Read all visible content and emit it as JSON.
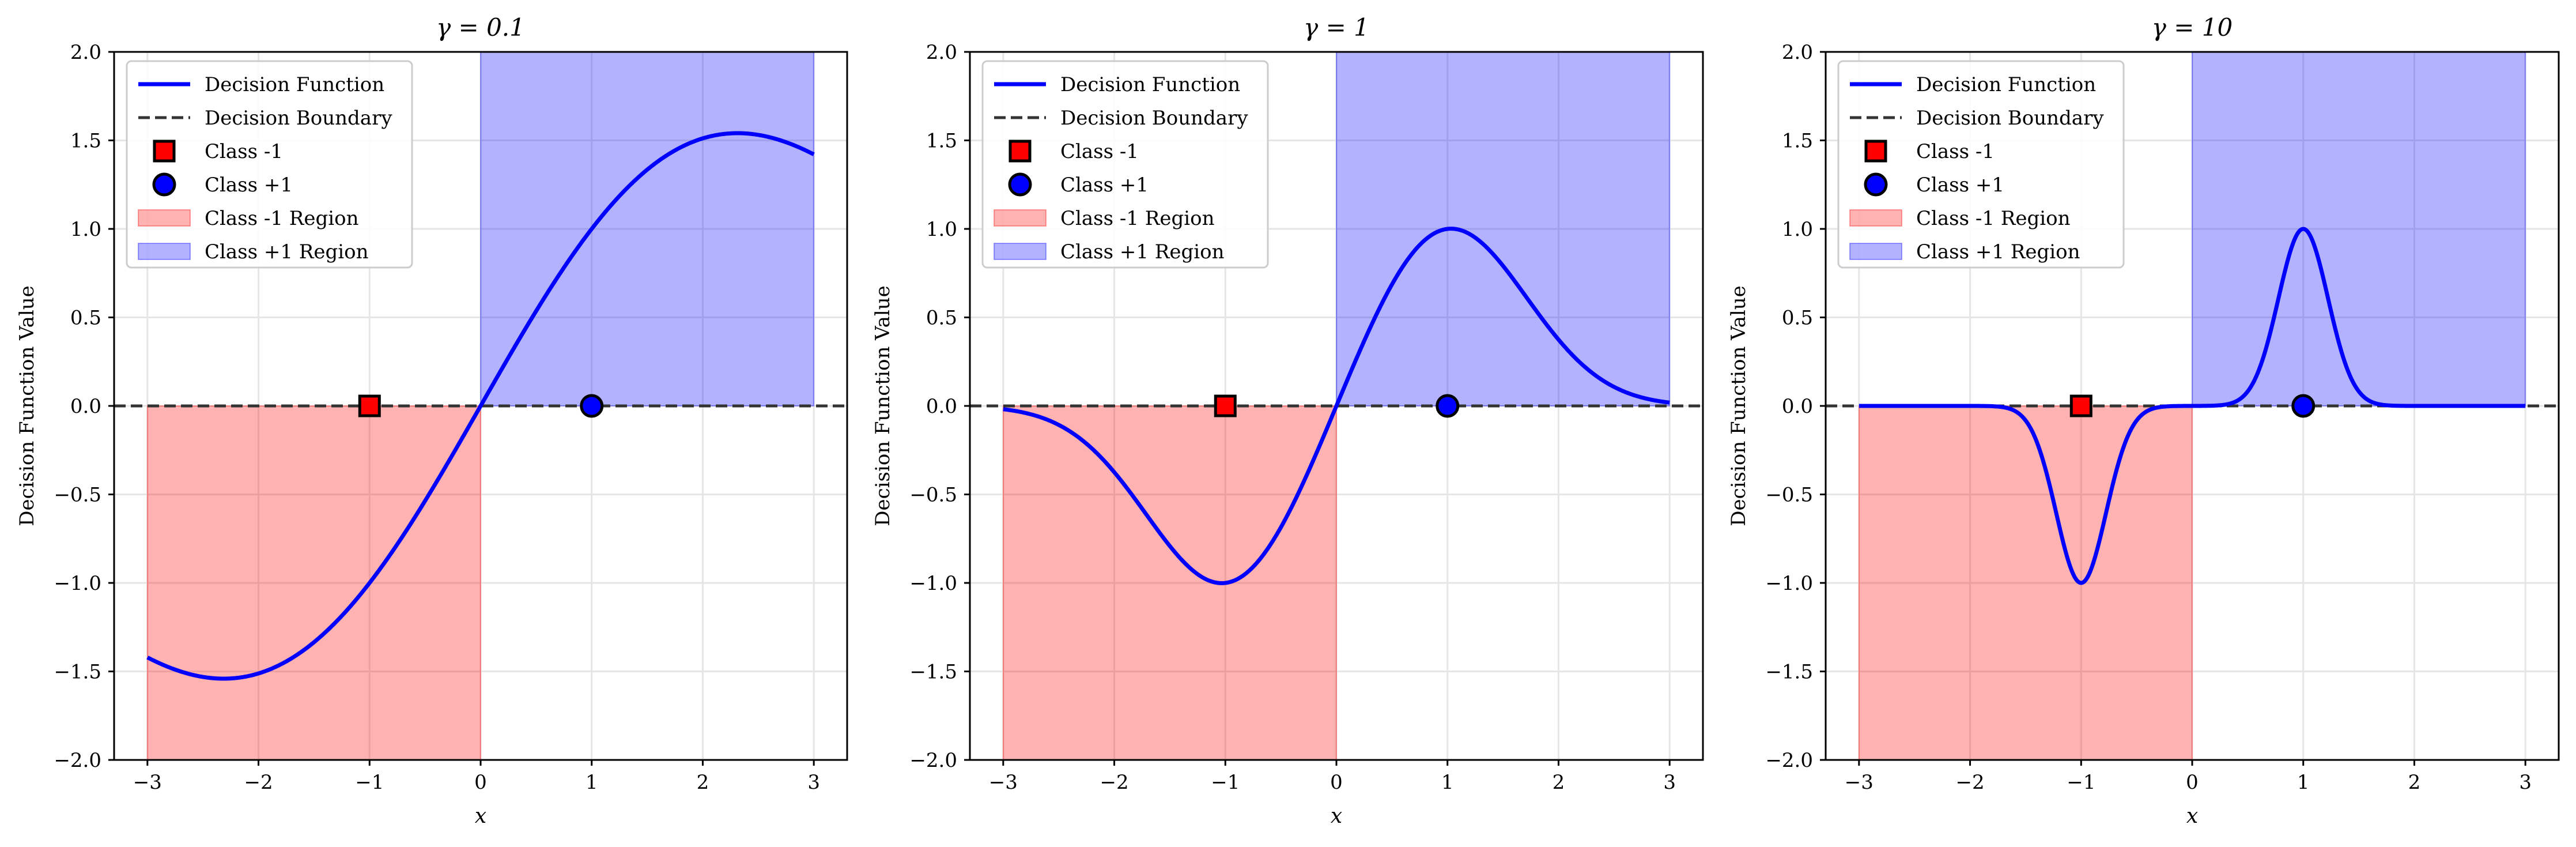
{
  "chart_data": [
    {
      "type": "line",
      "title": "γ = 0.1",
      "gamma": 0.1,
      "xlabel": "x",
      "ylabel": "Decision Function Value",
      "xlim": [
        -3.3,
        3.3
      ],
      "ylim": [
        -2.0,
        2.0
      ],
      "xticks": [
        -3,
        -2,
        -1,
        0,
        1,
        2,
        3
      ],
      "xtick_labels": [
        "−3",
        "−2",
        "−1",
        "0",
        "1",
        "2",
        "3"
      ],
      "yticks": [
        -2.0,
        -1.5,
        -1.0,
        -0.5,
        0.0,
        0.5,
        1.0,
        1.5,
        2.0
      ],
      "ytick_labels": [
        "−2.0",
        "−1.5",
        "−1.0",
        "−0.5",
        "0.0",
        "0.5",
        "1.0",
        "1.5",
        "2.0"
      ],
      "grid": true,
      "legend_location": "upper left",
      "series": [
        {
          "name": "Decision Function",
          "style": "solid",
          "color": "#0000ff",
          "x_range": [
            -3,
            3
          ],
          "formula": "f(x) = (exp(-gamma*(x-1)^2) - exp(-gamma*(x+1)^2)) / (1 - exp(-4*gamma))"
        },
        {
          "name": "Decision Boundary",
          "style": "dashed",
          "color": "#333333",
          "y": 0
        }
      ],
      "points": [
        {
          "name": "Class -1",
          "x": -1,
          "y": 0,
          "marker": "square",
          "color": "#ff0000"
        },
        {
          "name": "Class +1",
          "x": 1,
          "y": 0,
          "marker": "circle",
          "color": "#0000ff"
        }
      ],
      "regions": [
        {
          "name": "Class -1 Region",
          "x": [
            -3,
            0
          ],
          "y": [
            -2,
            0
          ],
          "color": "#ff0000",
          "alpha": 0.3
        },
        {
          "name": "Class +1 Region",
          "x": [
            0,
            3
          ],
          "y": [
            0,
            2
          ],
          "color": "#0000ff",
          "alpha": 0.3
        }
      ]
    },
    {
      "type": "line",
      "title": "γ = 1",
      "gamma": 1,
      "xlabel": "x",
      "ylabel": "Decision Function Value",
      "xlim": [
        -3.3,
        3.3
      ],
      "ylim": [
        -2.0,
        2.0
      ],
      "xticks": [
        -3,
        -2,
        -1,
        0,
        1,
        2,
        3
      ],
      "xtick_labels": [
        "−3",
        "−2",
        "−1",
        "0",
        "1",
        "2",
        "3"
      ],
      "yticks": [
        -2.0,
        -1.5,
        -1.0,
        -0.5,
        0.0,
        0.5,
        1.0,
        1.5,
        2.0
      ],
      "ytick_labels": [
        "−2.0",
        "−1.5",
        "−1.0",
        "−0.5",
        "0.0",
        "0.5",
        "1.0",
        "1.5",
        "2.0"
      ],
      "grid": true,
      "legend_location": "upper left",
      "series": [
        {
          "name": "Decision Function",
          "style": "solid",
          "color": "#0000ff",
          "x_range": [
            -3,
            3
          ],
          "formula": "f(x) = (exp(-gamma*(x-1)^2) - exp(-gamma*(x+1)^2)) / (1 - exp(-4*gamma))"
        },
        {
          "name": "Decision Boundary",
          "style": "dashed",
          "color": "#333333",
          "y": 0
        }
      ],
      "points": [
        {
          "name": "Class -1",
          "x": -1,
          "y": 0,
          "marker": "square",
          "color": "#ff0000"
        },
        {
          "name": "Class +1",
          "x": 1,
          "y": 0,
          "marker": "circle",
          "color": "#0000ff"
        }
      ],
      "regions": [
        {
          "name": "Class -1 Region",
          "x": [
            -3,
            0
          ],
          "y": [
            -2,
            0
          ],
          "color": "#ff0000",
          "alpha": 0.3
        },
        {
          "name": "Class +1 Region",
          "x": [
            0,
            3
          ],
          "y": [
            0,
            2
          ],
          "color": "#0000ff",
          "alpha": 0.3
        }
      ]
    },
    {
      "type": "line",
      "title": "γ = 10",
      "gamma": 10,
      "xlabel": "x",
      "ylabel": "Decision Function Value",
      "xlim": [
        -3.3,
        3.3
      ],
      "ylim": [
        -2.0,
        2.0
      ],
      "xticks": [
        -3,
        -2,
        -1,
        0,
        1,
        2,
        3
      ],
      "xtick_labels": [
        "−3",
        "−2",
        "−1",
        "0",
        "1",
        "2",
        "3"
      ],
      "yticks": [
        -2.0,
        -1.5,
        -1.0,
        -0.5,
        0.0,
        0.5,
        1.0,
        1.5,
        2.0
      ],
      "ytick_labels": [
        "−2.0",
        "−1.5",
        "−1.0",
        "−0.5",
        "0.0",
        "0.5",
        "1.0",
        "1.5",
        "2.0"
      ],
      "grid": true,
      "legend_location": "upper left",
      "series": [
        {
          "name": "Decision Function",
          "style": "solid",
          "color": "#0000ff",
          "x_range": [
            -3,
            3
          ],
          "formula": "f(x) = (exp(-gamma*(x-1)^2) - exp(-gamma*(x+1)^2)) / (1 - exp(-4*gamma))"
        },
        {
          "name": "Decision Boundary",
          "style": "dashed",
          "color": "#333333",
          "y": 0
        }
      ],
      "points": [
        {
          "name": "Class -1",
          "x": -1,
          "y": 0,
          "marker": "square",
          "color": "#ff0000"
        },
        {
          "name": "Class +1",
          "x": 1,
          "y": 0,
          "marker": "circle",
          "color": "#0000ff"
        }
      ],
      "regions": [
        {
          "name": "Class -1 Region",
          "x": [
            -3,
            0
          ],
          "y": [
            -2,
            0
          ],
          "color": "#ff0000",
          "alpha": 0.3
        },
        {
          "name": "Class +1 Region",
          "x": [
            0,
            3
          ],
          "y": [
            0,
            2
          ],
          "color": "#0000ff",
          "alpha": 0.3
        }
      ]
    }
  ]
}
